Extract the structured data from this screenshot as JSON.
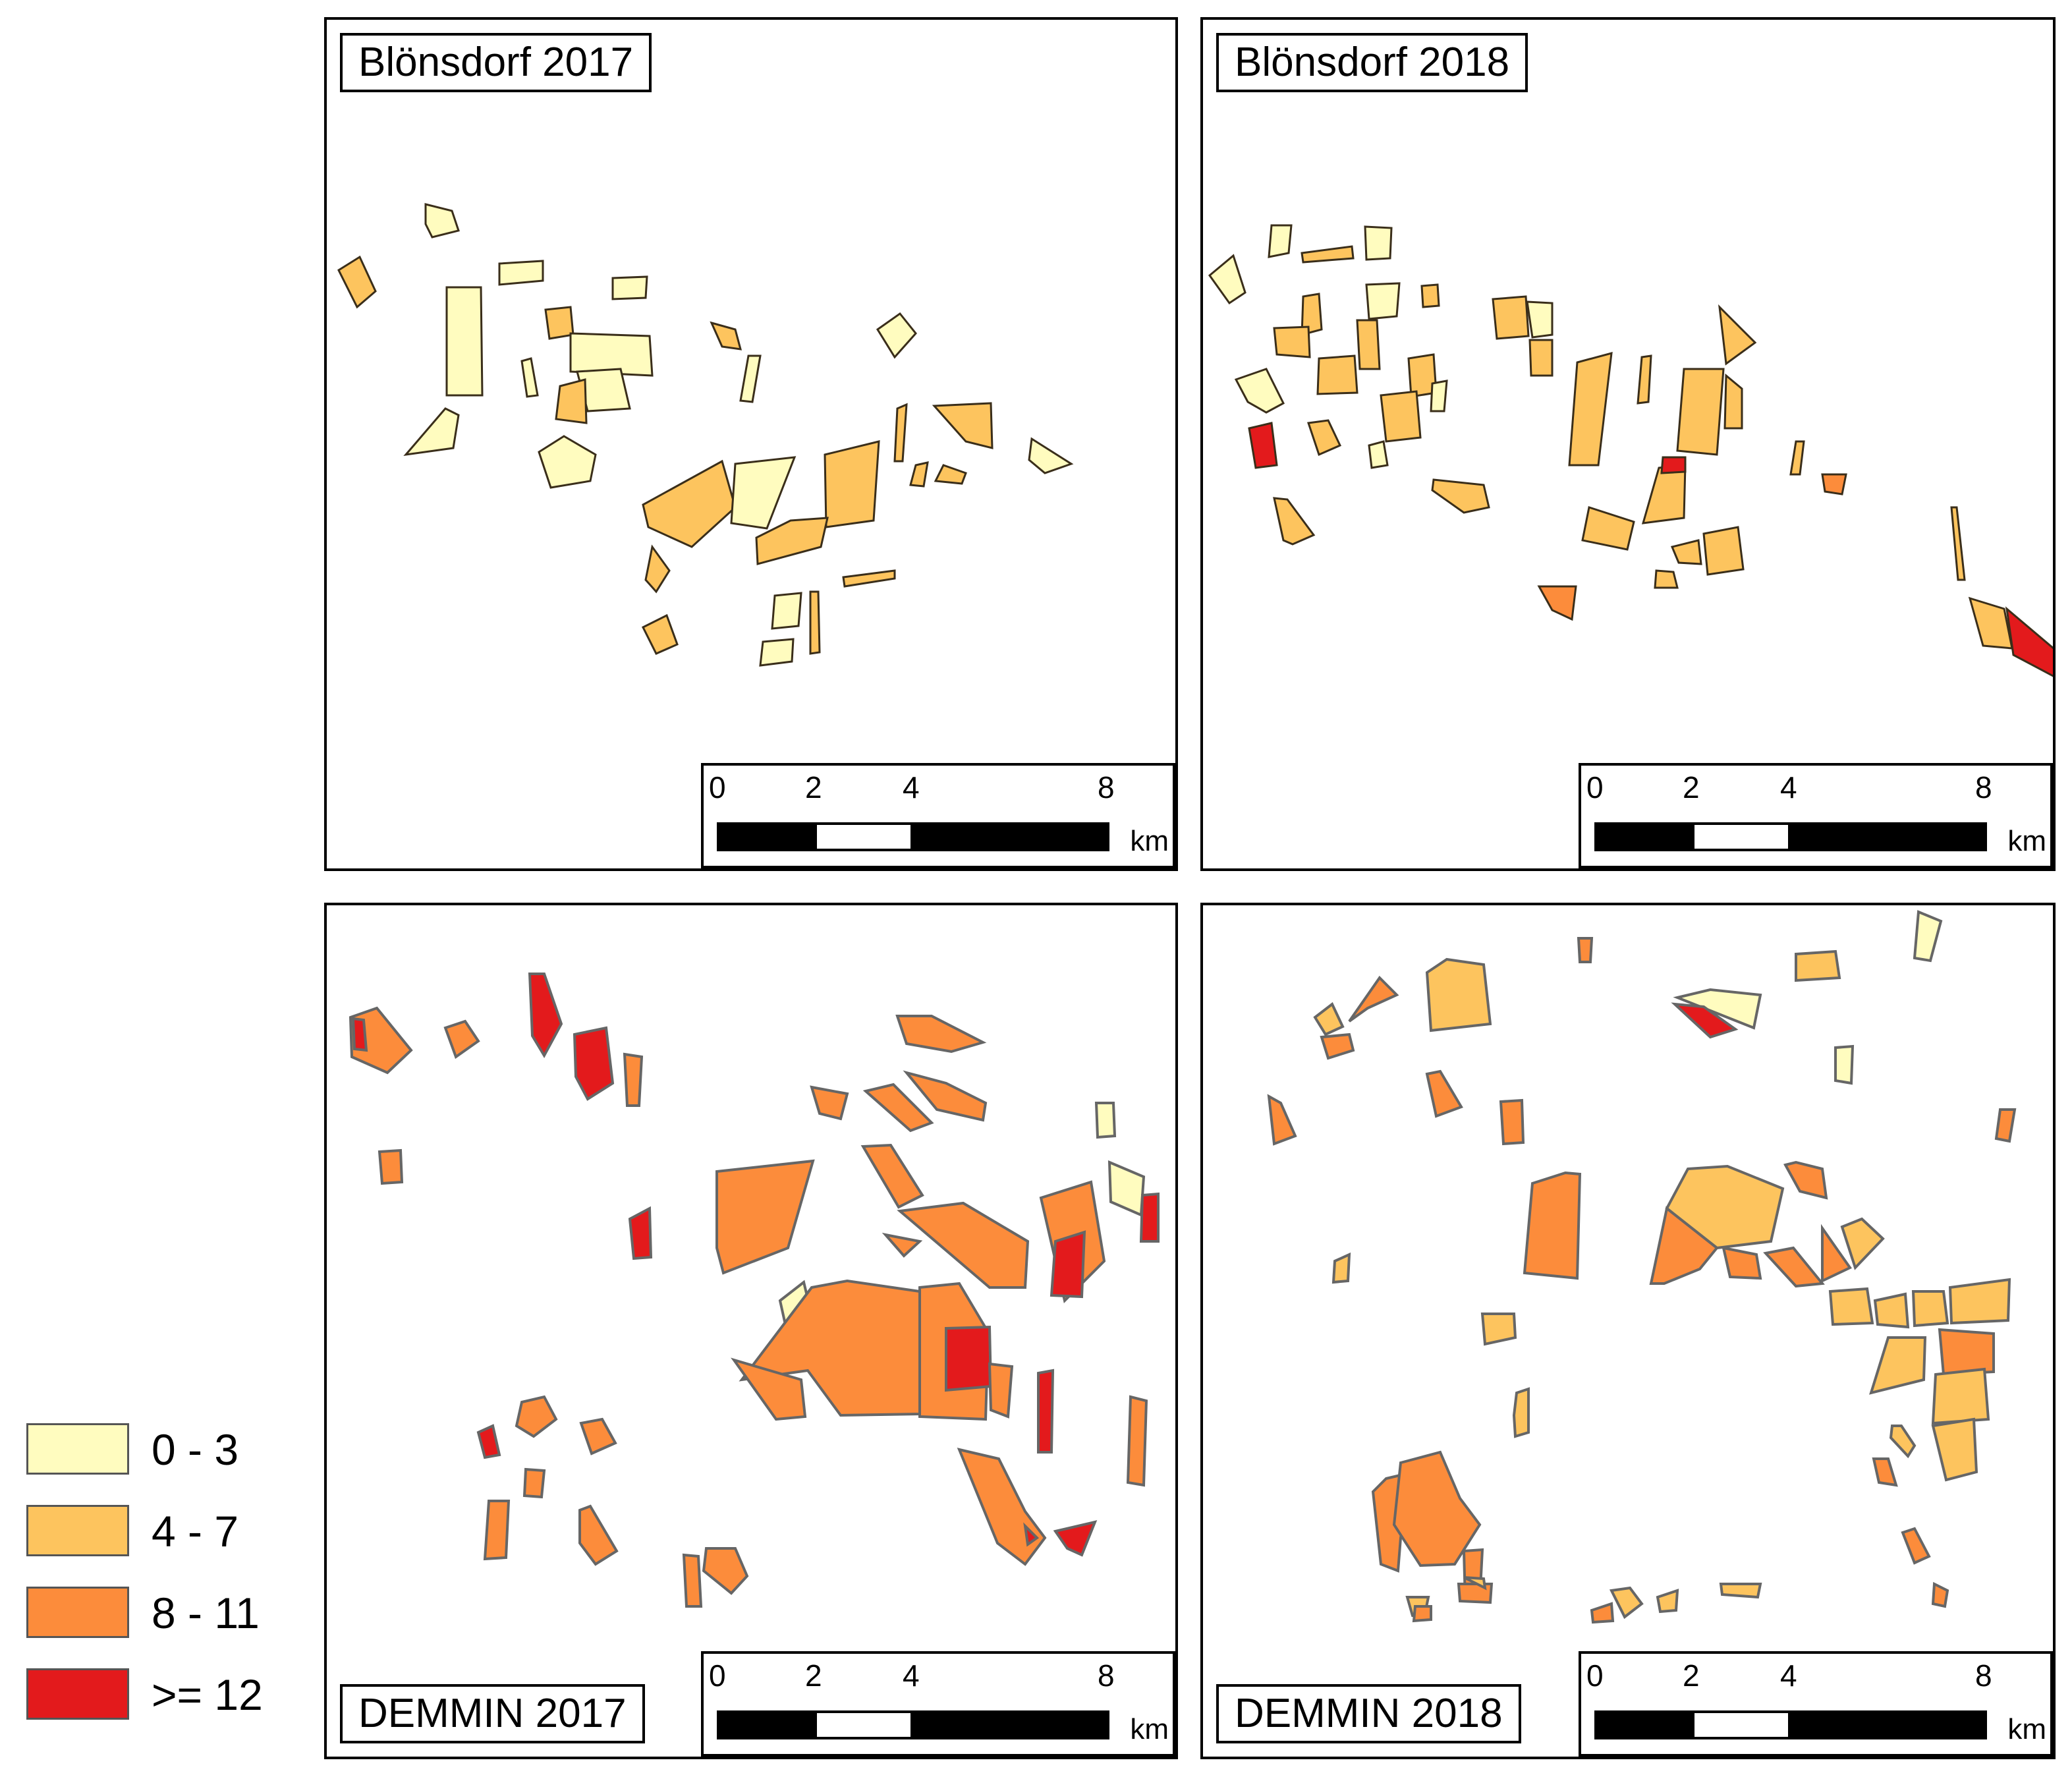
{
  "panels": [
    {
      "title": "Blönsdorf 2017"
    },
    {
      "title": "Blönsdorf 2018"
    },
    {
      "title": "DEMMIN 2017"
    },
    {
      "title": "DEMMIN 2018"
    }
  ],
  "scalebar": {
    "ticks": [
      "0",
      "2",
      "4",
      "8"
    ],
    "unit": "km"
  },
  "legend": {
    "items": [
      {
        "label": "0 - 3",
        "color": "#fffcbf"
      },
      {
        "label": "4 - 7",
        "color": "#fdc45e"
      },
      {
        "label": "8 - 11",
        "color": "#fc8c3b"
      },
      {
        "label": ">= 12",
        "color": "#e31a1c"
      }
    ]
  },
  "outline_colors": {
    "blonsdorf": "#3a2e1a",
    "demmin": "#666666"
  }
}
